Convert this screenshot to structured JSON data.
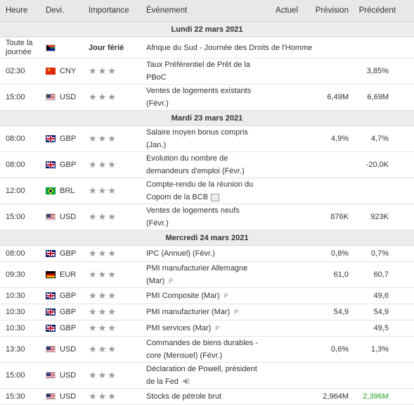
{
  "headers": {
    "time": "Heure",
    "currency": "Devi.",
    "importance": "Importance",
    "event": "Événement",
    "actual": "Actuel",
    "forecast": "Prévision",
    "previous": "Précédent"
  },
  "days": [
    {
      "label": "Lundi 22 mars 2021"
    },
    {
      "label": "Mardi 23 mars 2021"
    },
    {
      "label": "Mercredi 24 mars 2021"
    }
  ],
  "rows": [
    {
      "time": "Toute la journée",
      "currency": "",
      "flag": "ZA",
      "importance": "Jour férié",
      "event_l1": "Afrique du Sud - Journée des Droits de l'Homme",
      "event_l2": "",
      "actual": "",
      "forecast": "",
      "previous": ""
    },
    {
      "time": "02:30",
      "currency": "CNY",
      "flag": "CN",
      "event_l1": "Taux Préférentiel de Prêt de la",
      "event_l2": "PBoC",
      "actual": "",
      "forecast": "",
      "previous": "3,85%"
    },
    {
      "time": "15:00",
      "currency": "USD",
      "flag": "US",
      "event_l1": "Ventes de logements existants",
      "event_l2": "(Févr.)",
      "actual": "",
      "forecast": "6,49M",
      "previous": "6,69M"
    },
    {
      "time": "08:00",
      "currency": "GBP",
      "flag": "GB",
      "event_l1": "Salaire moyen bonus compris",
      "event_l2": "(Jan.)",
      "actual": "",
      "forecast": "4,9%",
      "previous": "4,7%"
    },
    {
      "time": "08:00",
      "currency": "GBP",
      "flag": "GB",
      "event_l1": "Evolution du nombre de",
      "event_l2": "demandeurs d'emploi (Févr.)",
      "actual": "",
      "forecast": "",
      "previous": "-20,0K"
    },
    {
      "time": "12:00",
      "currency": "BRL",
      "flag": "BR",
      "event_l1": "Compte-rendu de la réunion du",
      "event_l2": "Copom de la BCB",
      "actual": "",
      "forecast": "",
      "previous": ""
    },
    {
      "time": "15:00",
      "currency": "USD",
      "flag": "US",
      "event_l1": "Ventes de logements neufs",
      "event_l2": "(Févr.)",
      "actual": "",
      "forecast": "876K",
      "previous": "923K"
    },
    {
      "time": "08:00",
      "currency": "GBP",
      "flag": "GB",
      "event_l1": "IPC (Annuel) (Févr.)",
      "event_l2": "",
      "actual": "",
      "forecast": "0,8%",
      "previous": "0,7%"
    },
    {
      "time": "09:30",
      "currency": "EUR",
      "flag": "DE",
      "event_l1": "PMI manufacturier Allemagne",
      "event_l2": "(Mar)",
      "actual": "",
      "forecast": "61,0",
      "previous": "60,7"
    },
    {
      "time": "10:30",
      "currency": "GBP",
      "flag": "GB",
      "event_l1": "PMI Composite (Mar)",
      "event_l2": "",
      "actual": "",
      "forecast": "",
      "previous": "49,6"
    },
    {
      "time": "10:30",
      "currency": "GBP",
      "flag": "GB",
      "event_l1": "PMI manufacturier (Mar)",
      "event_l2": "",
      "actual": "",
      "forecast": "54,9",
      "previous": "54,9"
    },
    {
      "time": "10:30",
      "currency": "GBP",
      "flag": "GB",
      "event_l1": "PMI services (Mar)",
      "event_l2": "",
      "actual": "",
      "forecast": "",
      "previous": "49,5"
    },
    {
      "time": "13:30",
      "currency": "USD",
      "flag": "US",
      "event_l1": "Commandes de biens durables -",
      "event_l2": "core (Mensuel) (Févr.)",
      "actual": "",
      "forecast": "0,6%",
      "previous": "1,3%"
    },
    {
      "time": "15:00",
      "currency": "USD",
      "flag": "US",
      "event_l1": "Déclaration de Powell, président",
      "event_l2": "de la Fed",
      "actual": "",
      "forecast": "",
      "previous": ""
    },
    {
      "time": "15:30",
      "currency": "USD",
      "flag": "US",
      "event_l1": "Stocks de pétrole brut",
      "event_l2": "",
      "actual": "",
      "forecast": "2,964M",
      "previous": "2,396M"
    }
  ],
  "colors": {
    "previous_up": "#2ca02c",
    "header_bg": "#e8e8e8",
    "day_bg": "#ececec"
  },
  "icons": {
    "preliminary": "P",
    "document": "document-icon",
    "speech": "speaker-icon",
    "star": "bull-star-icon"
  }
}
